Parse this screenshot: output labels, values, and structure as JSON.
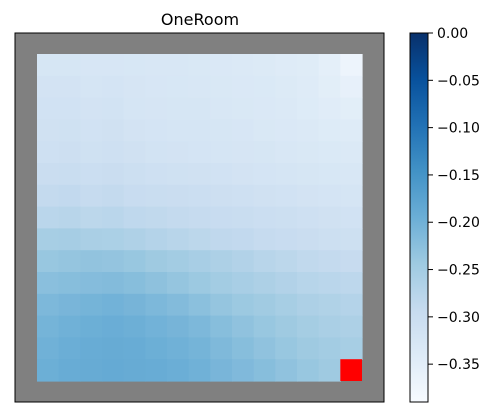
{
  "chart_data": {
    "type": "heatmap",
    "title": "OneRoom",
    "grid_size": [
      15,
      15
    ],
    "wall_color": "#808080",
    "goal_color": "#ff0000",
    "goal_cell": {
      "row": 14,
      "col": 14
    },
    "colormap": "Blues",
    "colorbar": {
      "range": [
        -0.39,
        0.0
      ],
      "ticks": [
        0.0,
        -0.05,
        -0.1,
        -0.15,
        -0.2,
        -0.25,
        -0.3,
        -0.35
      ],
      "tick_labels": [
        "0.00",
        "−0.05",
        "−0.10",
        "−0.15",
        "−0.20",
        "−0.25",
        "−0.30",
        "−0.35"
      ]
    },
    "values": [
      [
        -0.325,
        -0.326,
        -0.327,
        -0.327,
        -0.328,
        -0.329,
        -0.33,
        -0.331,
        -0.333,
        -0.335,
        -0.338,
        -0.341,
        -0.344,
        -0.352,
        -0.37
      ],
      [
        -0.318,
        -0.318,
        -0.322,
        -0.32,
        -0.324,
        -0.327,
        -0.328,
        -0.33,
        -0.332,
        -0.333,
        -0.334,
        -0.338,
        -0.342,
        -0.35,
        -0.358
      ],
      [
        -0.315,
        -0.314,
        -0.318,
        -0.316,
        -0.322,
        -0.324,
        -0.325,
        -0.326,
        -0.33,
        -0.331,
        -0.333,
        -0.336,
        -0.34,
        -0.345,
        -0.35
      ],
      [
        -0.312,
        -0.31,
        -0.314,
        -0.312,
        -0.318,
        -0.32,
        -0.322,
        -0.323,
        -0.326,
        -0.327,
        -0.331,
        -0.333,
        -0.336,
        -0.34,
        -0.342
      ],
      [
        -0.308,
        -0.306,
        -0.31,
        -0.308,
        -0.312,
        -0.316,
        -0.318,
        -0.32,
        -0.322,
        -0.324,
        -0.326,
        -0.329,
        -0.332,
        -0.334,
        -0.336
      ],
      [
        -0.3,
        -0.298,
        -0.302,
        -0.3,
        -0.305,
        -0.308,
        -0.31,
        -0.312,
        -0.315,
        -0.318,
        -0.32,
        -0.322,
        -0.326,
        -0.328,
        -0.33
      ],
      [
        -0.29,
        -0.288,
        -0.292,
        -0.29,
        -0.296,
        -0.298,
        -0.3,
        -0.302,
        -0.306,
        -0.309,
        -0.312,
        -0.314,
        -0.318,
        -0.32,
        -0.322
      ],
      [
        -0.278,
        -0.276,
        -0.28,
        -0.278,
        -0.284,
        -0.287,
        -0.29,
        -0.292,
        -0.296,
        -0.299,
        -0.302,
        -0.305,
        -0.309,
        -0.312,
        -0.315
      ],
      [
        -0.255,
        -0.253,
        -0.258,
        -0.26,
        -0.265,
        -0.27,
        -0.275,
        -0.28,
        -0.285,
        -0.288,
        -0.292,
        -0.296,
        -0.3,
        -0.304,
        -0.307
      ],
      [
        -0.238,
        -0.235,
        -0.232,
        -0.234,
        -0.238,
        -0.245,
        -0.25,
        -0.256,
        -0.262,
        -0.268,
        -0.275,
        -0.28,
        -0.286,
        -0.29,
        -0.294
      ],
      [
        -0.225,
        -0.222,
        -0.22,
        -0.218,
        -0.222,
        -0.228,
        -0.235,
        -0.242,
        -0.25,
        -0.256,
        -0.262,
        -0.268,
        -0.274,
        -0.278,
        -0.282
      ],
      [
        -0.212,
        -0.208,
        -0.205,
        -0.202,
        -0.206,
        -0.212,
        -0.218,
        -0.226,
        -0.235,
        -0.242,
        -0.248,
        -0.255,
        -0.262,
        -0.266,
        -0.27
      ],
      [
        -0.205,
        -0.2,
        -0.196,
        -0.194,
        -0.197,
        -0.202,
        -0.206,
        -0.212,
        -0.222,
        -0.23,
        -0.238,
        -0.245,
        -0.252,
        -0.258,
        -0.262
      ],
      [
        -0.2,
        -0.195,
        -0.192,
        -0.19,
        -0.192,
        -0.196,
        -0.2,
        -0.205,
        -0.214,
        -0.222,
        -0.23,
        -0.238,
        -0.245,
        -0.25,
        -0.255
      ],
      [
        -0.196,
        -0.192,
        -0.19,
        -0.188,
        -0.19,
        -0.192,
        -0.195,
        -0.2,
        -0.208,
        -0.215,
        -0.222,
        -0.23,
        -0.238,
        -0.245,
        null
      ]
    ]
  }
}
